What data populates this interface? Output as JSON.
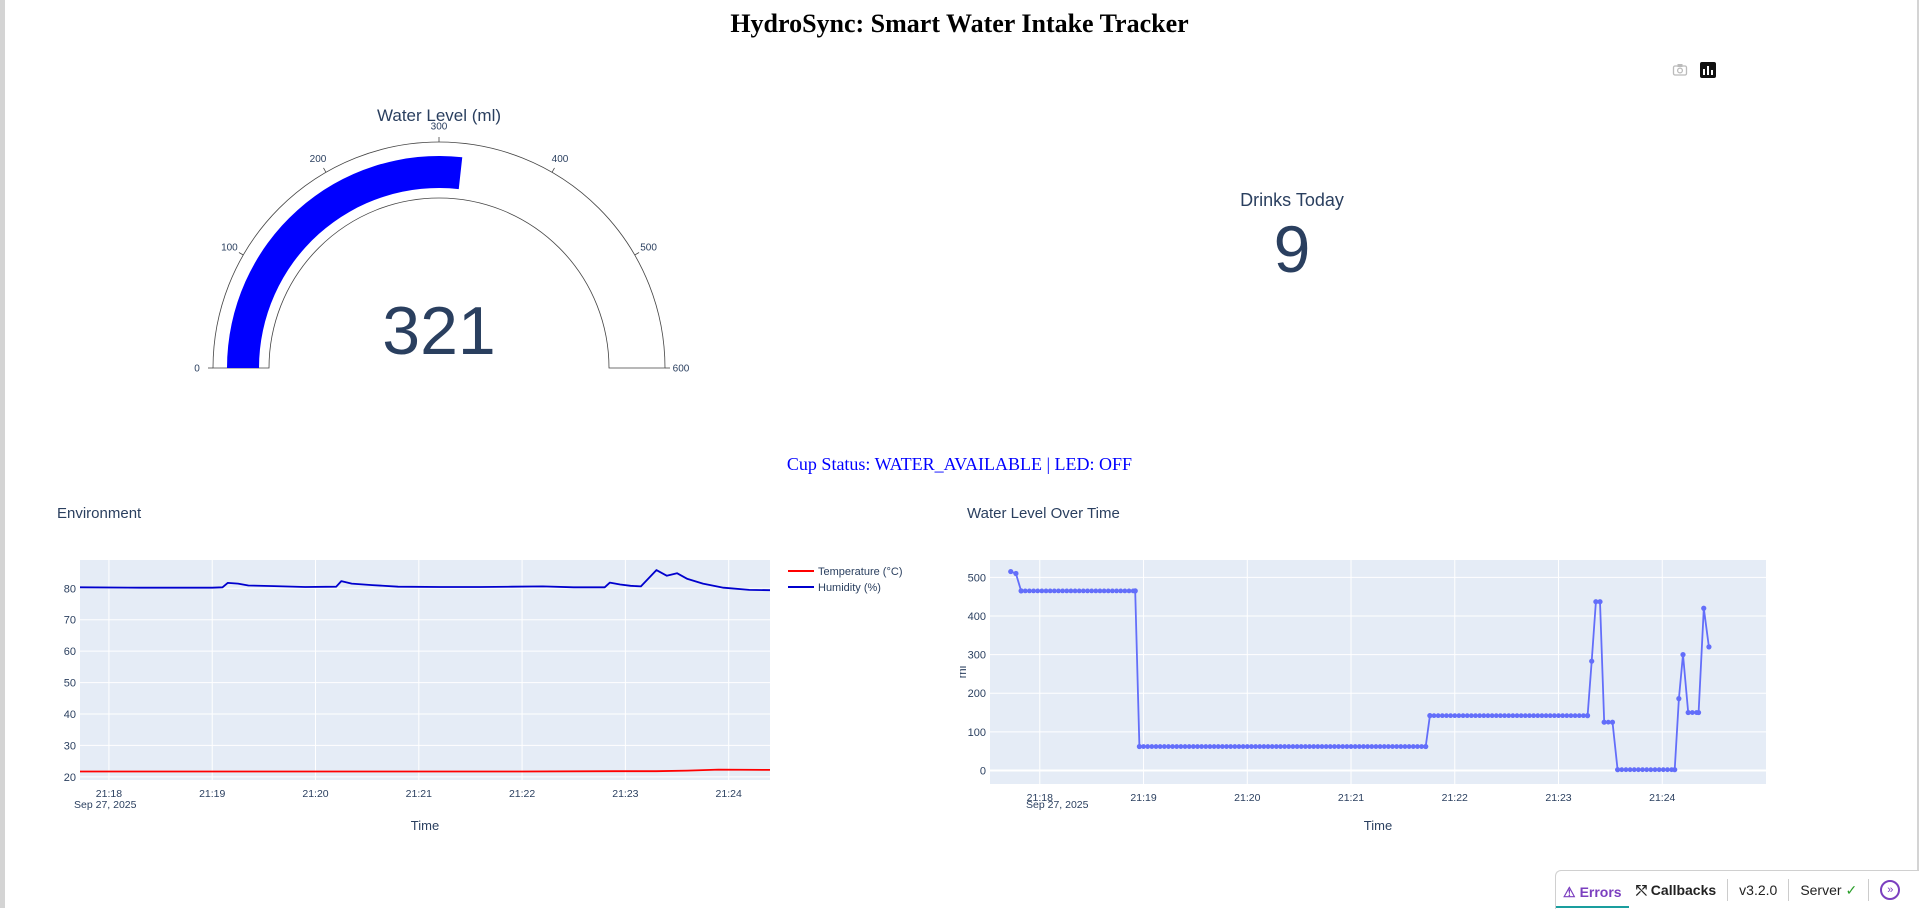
{
  "page": {
    "title": "HydroSync: Smart Water Intake Tracker"
  },
  "modebar": {
    "camera_icon": "camera-icon",
    "plotly_icon": "plotly-logo-icon"
  },
  "gauge": {
    "title": "Water Level (ml)",
    "value": 321,
    "value_text": "321",
    "range": [
      0,
      600
    ],
    "ticks": [
      "0",
      "100",
      "200",
      "300",
      "400",
      "500",
      "600"
    ],
    "bar_color": "#0000ff"
  },
  "drinks": {
    "title": "Drinks Today",
    "value": "9"
  },
  "status": {
    "text": "Cup Status: WATER_AVAILABLE | LED: OFF",
    "color": "#0000ff"
  },
  "env_chart": {
    "title": "Environment"
  },
  "level_chart": {
    "title": "Water Level Over Time"
  },
  "chart_data": [
    {
      "type": "line",
      "title": "Environment",
      "xlabel": "Time",
      "ylabel": "",
      "x_ticks": [
        "21:18",
        "21:19",
        "21:20",
        "21:21",
        "21:22",
        "21:23",
        "21:24"
      ],
      "x_date_label": "Sep 27, 2025",
      "y_ticks": [
        "20",
        "30",
        "40",
        "50",
        "60",
        "70",
        "80"
      ],
      "ylim": [
        19,
        89
      ],
      "xlim": [
        17.72,
        24.4
      ],
      "legend": "top-right",
      "series": [
        {
          "name": "Temperature (°C)",
          "color": "#ff0000",
          "points": [
            [
              17.72,
              21.7
            ],
            [
              22.0,
              21.7
            ],
            [
              22.9,
              21.8
            ],
            [
              23.3,
              21.8
            ],
            [
              23.6,
              22.0
            ],
            [
              23.9,
              22.3
            ],
            [
              24.4,
              22.2
            ]
          ]
        },
        {
          "name": "Humidity (%)",
          "color": "#0000cd",
          "points": [
            [
              17.72,
              80.3
            ],
            [
              18.3,
              80.2
            ],
            [
              19.0,
              80.2
            ],
            [
              19.1,
              80.3
            ],
            [
              19.15,
              81.7
            ],
            [
              19.25,
              81.5
            ],
            [
              19.35,
              80.9
            ],
            [
              19.6,
              80.7
            ],
            [
              19.9,
              80.4
            ],
            [
              20.2,
              80.5
            ],
            [
              20.25,
              82.3
            ],
            [
              20.35,
              81.5
            ],
            [
              20.55,
              81.0
            ],
            [
              20.8,
              80.5
            ],
            [
              21.2,
              80.4
            ],
            [
              21.6,
              80.4
            ],
            [
              21.9,
              80.5
            ],
            [
              22.2,
              80.6
            ],
            [
              22.5,
              80.3
            ],
            [
              22.8,
              80.3
            ],
            [
              22.85,
              81.8
            ],
            [
              22.95,
              81.2
            ],
            [
              23.05,
              80.8
            ],
            [
              23.15,
              80.6
            ],
            [
              23.3,
              85.8
            ],
            [
              23.4,
              84.0
            ],
            [
              23.5,
              84.8
            ],
            [
              23.6,
              83.0
            ],
            [
              23.75,
              81.5
            ],
            [
              23.95,
              80.2
            ],
            [
              24.2,
              79.5
            ],
            [
              24.4,
              79.4
            ]
          ]
        }
      ]
    },
    {
      "type": "line",
      "title": "Water Level Over Time",
      "xlabel": "Time",
      "ylabel": "ml",
      "x_ticks": [
        "21:18",
        "21:19",
        "21:20",
        "21:21",
        "21:22",
        "21:23",
        "21:24"
      ],
      "x_date_label": "Sep 27, 2025",
      "y_ticks": [
        "0",
        "100",
        "200",
        "300",
        "400",
        "500"
      ],
      "ylim": [
        -35,
        545
      ],
      "xlim": [
        17.52,
        25.0
      ],
      "markers": true,
      "series": [
        {
          "name": "",
          "color": "#636efa",
          "points": [
            [
              17.72,
              515
            ],
            [
              17.77,
              510
            ],
            [
              17.82,
              465
            ],
            [
              18.92,
              465
            ],
            [
              18.96,
              62
            ],
            [
              21.72,
              62
            ],
            [
              21.76,
              142
            ],
            [
              23.28,
              142
            ],
            [
              23.32,
              283
            ],
            [
              23.36,
              437
            ],
            [
              23.4,
              437
            ],
            [
              23.44,
              125
            ],
            [
              23.52,
              125
            ],
            [
              23.57,
              2
            ],
            [
              24.12,
              2
            ],
            [
              24.16,
              186
            ],
            [
              24.2,
              300
            ],
            [
              24.25,
              150
            ],
            [
              24.35,
              150
            ],
            [
              24.4,
              420
            ],
            [
              24.45,
              320
            ]
          ]
        }
      ]
    }
  ],
  "debug": {
    "errors_label": "Errors",
    "callbacks_label": "Callbacks",
    "version": "v3.2.0",
    "server_label": "Server"
  }
}
